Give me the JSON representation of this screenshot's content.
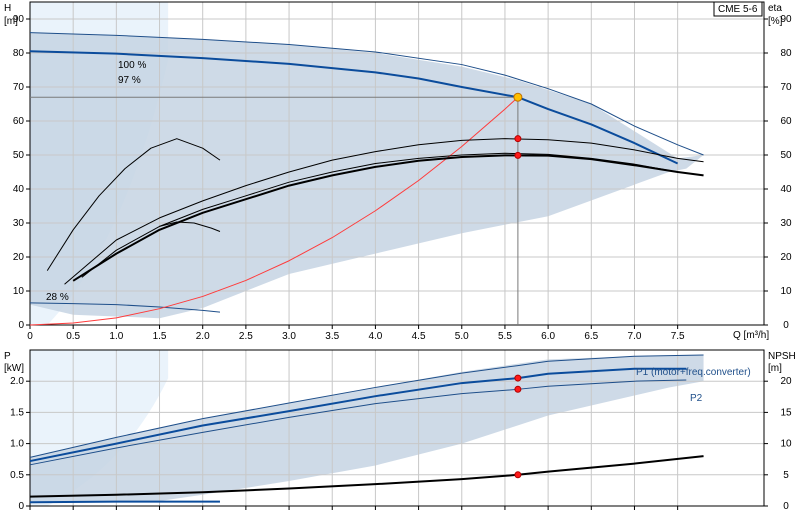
{
  "chart_data": [
    {
      "type": "line",
      "panel": "head-efficiency",
      "y_axis_left": {
        "label_top": "H",
        "label_unit": "[m]",
        "range": [
          0,
          95
        ],
        "ticks": [
          0,
          10,
          20,
          30,
          40,
          50,
          60,
          70,
          80,
          90
        ]
      },
      "y_axis_right": {
        "label_top": "eta",
        "label_unit": "[%]",
        "range": [
          0,
          95
        ],
        "ticks": [
          0,
          10,
          20,
          30,
          40,
          50,
          60,
          70,
          80,
          90
        ]
      },
      "x_axis": {
        "label": "Q [m³/h]",
        "range": [
          0,
          8.5
        ],
        "ticks": [
          "0",
          "0.5",
          "1.0",
          "1.5",
          "2.0",
          "2.5",
          "3.0",
          "3.5",
          "4.0",
          "4.5",
          "5.0",
          "5.5",
          "6.0",
          "6.5",
          "7.0",
          "7.5"
        ],
        "tick_values": [
          0,
          0.5,
          1,
          1.5,
          2,
          2.5,
          3,
          3.5,
          4,
          4.5,
          5,
          5.5,
          6,
          6.5,
          7,
          7.5
        ]
      },
      "legend_box": "CME 5-6",
      "grid": true,
      "annotations": [
        "100 %",
        "97 %",
        "28 %"
      ],
      "envelope": [
        [
          0,
          86
        ],
        [
          1,
          85
        ],
        [
          2,
          84
        ],
        [
          3,
          82.5
        ],
        [
          4,
          80
        ],
        [
          5,
          76
        ],
        [
          5.65,
          72
        ],
        [
          6.5,
          65
        ],
        [
          7,
          57
        ],
        [
          7.5,
          49
        ],
        [
          7.8,
          50
        ],
        [
          7.6,
          46
        ],
        [
          7.4,
          45
        ],
        [
          6,
          32
        ],
        [
          5,
          27
        ],
        [
          4,
          21
        ],
        [
          3,
          15
        ],
        [
          2,
          5
        ],
        [
          1.5,
          2
        ],
        [
          0.5,
          3
        ],
        [
          0,
          6
        ]
      ],
      "series": [
        {
          "name": "100 %",
          "role": "head-max",
          "color": "#1f4f8a",
          "width": 1,
          "points": [
            [
              0,
              86
            ],
            [
              1,
              85.2
            ],
            [
              2,
              84
            ],
            [
              3,
              82.5
            ],
            [
              4,
              80.3
            ],
            [
              5,
              76.6
            ],
            [
              5.5,
              73.5
            ],
            [
              6,
              69.5
            ],
            [
              6.5,
              65
            ],
            [
              7,
              58.5
            ],
            [
              7.5,
              53
            ],
            [
              7.8,
              50
            ]
          ]
        },
        {
          "name": "97 %",
          "role": "head-operating",
          "color": "#0b4c9c",
          "width": 2,
          "points": [
            [
              0,
              80.5
            ],
            [
              1,
              79.8
            ],
            [
              2,
              78.5
            ],
            [
              3,
              76.8
            ],
            [
              4,
              74.3
            ],
            [
              4.5,
              72.5
            ],
            [
              5,
              70
            ],
            [
              5.65,
              67
            ],
            [
              6,
              63.5
            ],
            [
              6.5,
              59
            ],
            [
              7,
              53.5
            ],
            [
              7.5,
              47.5
            ]
          ]
        },
        {
          "name": "28 %",
          "role": "head-min",
          "color": "#1f4f8a",
          "width": 1,
          "points": [
            [
              0,
              6.5
            ],
            [
              0.5,
              6.3
            ],
            [
              1,
              6
            ],
            [
              1.5,
              5.3
            ],
            [
              2,
              4.3
            ],
            [
              2.2,
              3.8
            ]
          ]
        },
        {
          "name": "",
          "role": "system-curve",
          "color": "#ff3b3b",
          "width": 1,
          "points": [
            [
              0,
              0
            ],
            [
              0.5,
              0.6
            ],
            [
              1,
              2.1
            ],
            [
              1.5,
              4.8
            ],
            [
              2,
              8.4
            ],
            [
              2.5,
              13.1
            ],
            [
              3,
              18.9
            ],
            [
              3.5,
              25.7
            ],
            [
              4,
              33.6
            ],
            [
              4.5,
              42.5
            ],
            [
              5,
              52.5
            ],
            [
              5.5,
              63.5
            ],
            [
              5.65,
              67
            ]
          ]
        },
        {
          "name": "",
          "role": "eta-max",
          "color": "#000000",
          "width": 1,
          "points": [
            [
              0.4,
              12
            ],
            [
              1,
              25
            ],
            [
              1.5,
              31.5
            ],
            [
              2,
              36.5
            ],
            [
              2.5,
              41
            ],
            [
              3,
              45
            ],
            [
              3.5,
              48.5
            ],
            [
              4,
              51
            ],
            [
              4.5,
              53
            ],
            [
              5,
              54.3
            ],
            [
              5.5,
              54.8
            ],
            [
              6,
              54.5
            ],
            [
              6.5,
              53.5
            ],
            [
              7,
              51.5
            ],
            [
              7.5,
              49
            ],
            [
              7.8,
              48
            ]
          ]
        },
        {
          "name": "",
          "role": "eta-operating",
          "color": "#000000",
          "width": 2,
          "points": [
            [
              0.5,
              13
            ],
            [
              1,
              21
            ],
            [
              1.5,
              28
            ],
            [
              2,
              33
            ],
            [
              2.5,
              37
            ],
            [
              3,
              41
            ],
            [
              3.5,
              44
            ],
            [
              4,
              46.5
            ],
            [
              4.5,
              48.3
            ],
            [
              5,
              49.4
            ],
            [
              5.5,
              49.9
            ],
            [
              6,
              49.8
            ],
            [
              6.5,
              48.8
            ],
            [
              7,
              47
            ],
            [
              7.5,
              45
            ],
            [
              7.8,
              44
            ]
          ]
        },
        {
          "name": "",
          "role": "eta-lower",
          "color": "#000000",
          "width": 1,
          "points": [
            [
              0.6,
              14
            ],
            [
              1,
              22
            ],
            [
              1.5,
              29
            ],
            [
              2,
              34
            ],
            [
              2.5,
              38
            ],
            [
              3,
              42
            ],
            [
              3.5,
              45
            ],
            [
              4,
              47.5
            ],
            [
              4.5,
              49
            ],
            [
              5,
              50
            ],
            [
              5.5,
              50.5
            ],
            [
              6,
              50.2
            ],
            [
              6.5,
              49
            ],
            [
              7,
              47.3
            ],
            [
              7.5,
              45
            ]
          ]
        },
        {
          "name": "",
          "role": "eta-min",
          "color": "#000000",
          "width": 1,
          "points": [
            [
              1.5,
              29
            ],
            [
              1.7,
              30.3
            ],
            [
              1.9,
              30
            ],
            [
              2.1,
              28.5
            ],
            [
              2.2,
              27.5
            ]
          ]
        },
        {
          "name": "",
          "role": "eta-28",
          "color": "#000000",
          "width": 1,
          "points": [
            [
              0.2,
              16
            ],
            [
              0.5,
              28
            ],
            [
              0.8,
              38
            ],
            [
              1.1,
              46
            ],
            [
              1.4,
              52
            ],
            [
              1.7,
              54.8
            ],
            [
              2,
              52
            ],
            [
              2.2,
              48.5
            ]
          ]
        }
      ],
      "operating_points": [
        [
          5.65,
          67
        ],
        [
          5.65,
          54.8
        ],
        [
          5.65,
          49.9
        ]
      ],
      "operating_lines": {
        "x": 5.65,
        "y": 67
      }
    },
    {
      "type": "line",
      "panel": "power-npsh",
      "y_axis_left": {
        "label_top": "P",
        "label_unit": "[kW]",
        "range": [
          0,
          2.5
        ],
        "ticks": [
          "0",
          "0.5",
          "1.0",
          "1.5",
          "2.0"
        ],
        "tick_values": [
          0,
          0.5,
          1,
          1.5,
          2
        ]
      },
      "y_axis_right": {
        "label_top": "NPSH",
        "label_unit": "[m]",
        "range": [
          0,
          25
        ],
        "ticks": [
          "0",
          "5",
          "10",
          "15",
          "20"
        ],
        "tick_values": [
          0,
          5,
          10,
          15,
          20
        ]
      },
      "x_axis": {
        "range": [
          0,
          8.5
        ]
      },
      "grid": true,
      "envelope": [
        [
          0,
          0.78
        ],
        [
          1,
          1.1
        ],
        [
          2,
          1.4
        ],
        [
          3,
          1.65
        ],
        [
          4,
          1.9
        ],
        [
          5,
          2.15
        ],
        [
          6,
          2.35
        ],
        [
          7,
          2.4
        ],
        [
          7.8,
          2.42
        ],
        [
          7.8,
          2.0
        ],
        [
          7.4,
          1.9
        ],
        [
          6,
          1.45
        ],
        [
          5,
          1.0
        ],
        [
          4,
          0.65
        ],
        [
          3,
          0.4
        ],
        [
          2,
          0.18
        ],
        [
          1.5,
          0.08
        ],
        [
          0,
          0.08
        ]
      ],
      "series": [
        {
          "name": "",
          "role": "p1-max",
          "color": "#1f4f8a",
          "width": 1,
          "points": [
            [
              0,
              0.78
            ],
            [
              1,
              1.1
            ],
            [
              2,
              1.4
            ],
            [
              3,
              1.65
            ],
            [
              4,
              1.9
            ],
            [
              5,
              2.13
            ],
            [
              5.65,
              2.25
            ],
            [
              6,
              2.32
            ],
            [
              7,
              2.4
            ],
            [
              7.8,
              2.42
            ]
          ]
        },
        {
          "name": "P1 (motor+freq.converter)",
          "role": "p1",
          "color": "#0b4c9c",
          "width": 2,
          "points": [
            [
              0,
              0.72
            ],
            [
              1,
              1.0
            ],
            [
              2,
              1.29
            ],
            [
              3,
              1.52
            ],
            [
              4,
              1.76
            ],
            [
              5,
              1.97
            ],
            [
              5.65,
              2.05
            ],
            [
              6,
              2.12
            ],
            [
              7,
              2.2
            ],
            [
              7.6,
              2.2
            ]
          ]
        },
        {
          "name": "P2",
          "role": "p2",
          "color": "#1f4f8a",
          "width": 1,
          "points": [
            [
              0,
              0.66
            ],
            [
              1,
              0.93
            ],
            [
              2,
              1.18
            ],
            [
              3,
              1.42
            ],
            [
              4,
              1.64
            ],
            [
              5,
              1.8
            ],
            [
              5.65,
              1.87
            ],
            [
              6,
              1.92
            ],
            [
              7,
              2.0
            ],
            [
              7.6,
              2.02
            ]
          ]
        },
        {
          "name": "",
          "role": "npsh",
          "color": "#000000",
          "width": 2,
          "points": [
            [
              0,
              0.15
            ],
            [
              1,
              0.18
            ],
            [
              2,
              0.22
            ],
            [
              3,
              0.28
            ],
            [
              4,
              0.35
            ],
            [
              5,
              0.43
            ],
            [
              5.65,
              0.5
            ],
            [
              6,
              0.55
            ],
            [
              7,
              0.68
            ],
            [
              7.8,
              0.8
            ]
          ]
        },
        {
          "name": "",
          "role": "p1-min",
          "color": "#0b4c9c",
          "width": 2,
          "points": [
            [
              0,
              0.06
            ],
            [
              1,
              0.07
            ],
            [
              2.2,
              0.07
            ]
          ]
        }
      ],
      "operating_points": [
        [
          5.65,
          2.05
        ],
        [
          5.65,
          1.87
        ],
        [
          5.65,
          0.5
        ]
      ]
    }
  ]
}
